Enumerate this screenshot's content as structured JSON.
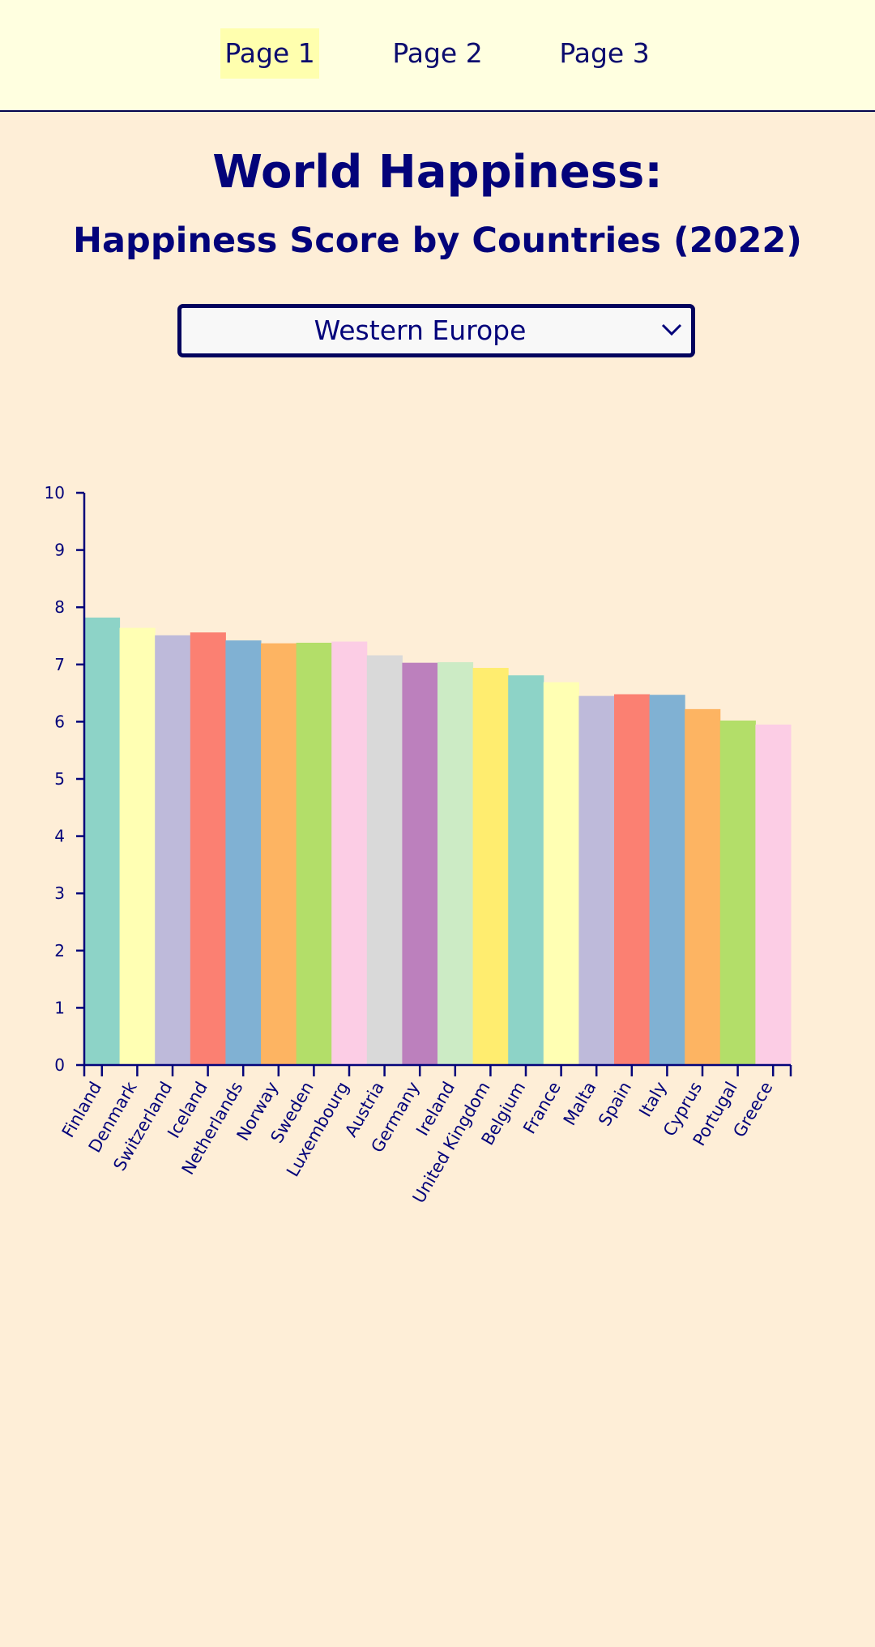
{
  "nav": {
    "items": [
      "Page 1",
      "Page 2",
      "Page 3"
    ],
    "active_index": 0
  },
  "header": {
    "title": "World Happiness:",
    "subtitle": "Happiness Score by Countries (2022)"
  },
  "filter": {
    "selected": "Western Europe",
    "icon": "chevron-down-icon"
  },
  "colors": {
    "accent": "#03037a",
    "nav_bg": "#ffffe0",
    "active_nav_bg": "#ffffae",
    "page_bg": "#feeed7",
    "bars": [
      "#8dd3c7",
      "#ffffb3",
      "#bebada",
      "#fb8072",
      "#80b1d3",
      "#fdb462",
      "#b3de69",
      "#fccde5",
      "#d9d9d9",
      "#bc80bd",
      "#ccebc5",
      "#ffed6f"
    ]
  },
  "chart_data": {
    "type": "bar",
    "categories": [
      "Finland",
      "Denmark",
      "Switzerland",
      "Iceland",
      "Netherlands",
      "Norway",
      "Sweden",
      "Luxembourg",
      "Austria",
      "Germany",
      "Ireland",
      "United Kingdom",
      "Belgium",
      "France",
      "Malta",
      "Spain",
      "Italy",
      "Cyprus",
      "Portugal",
      "Greece"
    ],
    "values": [
      7.82,
      7.64,
      7.51,
      7.56,
      7.42,
      7.37,
      7.38,
      7.4,
      7.16,
      7.03,
      7.04,
      6.94,
      6.81,
      6.69,
      6.45,
      6.48,
      6.47,
      6.22,
      6.02,
      5.95
    ],
    "ylim": [
      0,
      10
    ],
    "yticks": [
      0,
      1,
      2,
      3,
      4,
      5,
      6,
      7,
      8,
      9,
      10
    ],
    "title": "",
    "xlabel": "",
    "ylabel": "",
    "grid": false,
    "legend": "none"
  }
}
